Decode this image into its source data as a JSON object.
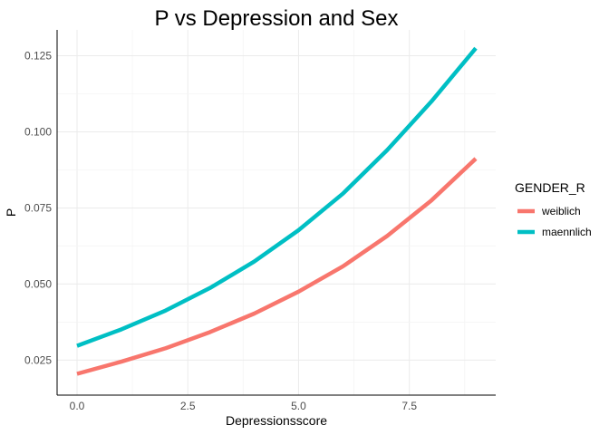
{
  "chart_data": {
    "type": "line",
    "title": "P vs Depression and Sex",
    "xlabel": "Depressionsscore",
    "ylabel": "P",
    "xlim": [
      -0.45,
      9.45
    ],
    "ylim": [
      0.0135,
      0.1335
    ],
    "x_ticks": [
      0,
      2.5,
      5,
      7.5
    ],
    "x_tick_labels": [
      "0.0",
      "2.5",
      "5.0",
      "7.5"
    ],
    "y_ticks": [
      0.025,
      0.05,
      0.075,
      0.1,
      0.125
    ],
    "y_tick_labels": [
      "0.025",
      "0.050",
      "0.075",
      "0.100",
      "0.125"
    ],
    "grid": true,
    "legend": {
      "title": "GENDER_R",
      "placement": "right"
    },
    "series": [
      {
        "name": "weiblich",
        "color": "#F8766D",
        "x": [
          0,
          1,
          2,
          3,
          4,
          5,
          6,
          7,
          8,
          9
        ],
        "values": [
          0.0205,
          0.0245,
          0.0289,
          0.0342,
          0.0403,
          0.0475,
          0.0558,
          0.0658,
          0.0775,
          0.0912
        ]
      },
      {
        "name": "maennlich",
        "color": "#00BFC4",
        "x": [
          0,
          1,
          2,
          3,
          4,
          5,
          6,
          7,
          8,
          9
        ],
        "values": [
          0.0297,
          0.0351,
          0.0413,
          0.0487,
          0.0574,
          0.0677,
          0.0797,
          0.094,
          0.11,
          0.1275
        ]
      }
    ]
  }
}
